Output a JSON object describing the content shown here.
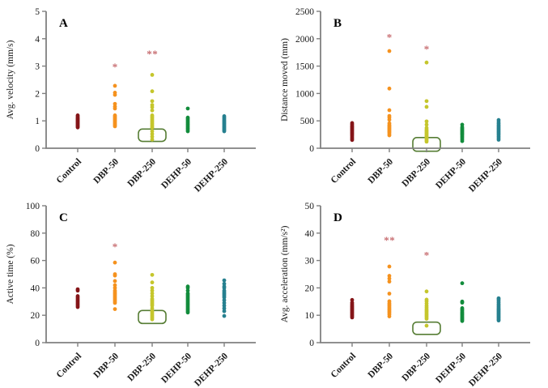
{
  "figure": {
    "background": "#ffffff",
    "axis_color": "#808080",
    "text_color": "#1a1a1a",
    "outlier_marker": "*",
    "outlier_color": "#c86e72",
    "highlight_box_color": "#567d34",
    "group_colors": {
      "Control": "#851518",
      "DBP-50": "#f5921e",
      "DBP-250": "#c5c62c",
      "DEHP-50": "#128c3c",
      "DEHP-250": "#26808f"
    }
  },
  "chart_data": [
    {
      "type": "scatter",
      "panel_label": "A",
      "title": "",
      "xlabel": "",
      "ylabel": "Avg. velocity (mm/s)",
      "ylim": [
        0,
        5
      ],
      "yticks": [
        0,
        1,
        2,
        3,
        4,
        5
      ],
      "categories": [
        "Control",
        "DBP-50",
        "DBP-250",
        "DEHP-50",
        "DEHP-250"
      ],
      "series": [
        {
          "name": "Control",
          "values": [
            0.76,
            0.79,
            0.82,
            0.85,
            0.88,
            0.91,
            0.94,
            0.97,
            1.0,
            1.03,
            1.06,
            1.09,
            1.12,
            1.16,
            1.2
          ],
          "outliers": []
        },
        {
          "name": "DBP-50",
          "values": [
            0.8,
            0.84,
            0.88,
            0.92,
            0.96,
            1.0,
            1.04,
            1.08,
            1.12,
            1.16,
            1.2,
            1.45,
            1.52,
            1.62,
            1.95,
            2.03,
            2.28
          ],
          "outliers": [
            2.97
          ]
        },
        {
          "name": "DBP-250",
          "values": [
            0.32,
            0.42,
            0.52,
            0.62,
            0.75,
            0.8,
            0.85,
            0.9,
            0.95,
            1.0,
            1.05,
            1.1,
            1.15,
            1.2,
            1.38,
            1.5,
            1.58,
            1.72,
            2.08,
            2.68
          ],
          "outliers": [
            3.45,
            3.45
          ]
        },
        {
          "name": "DEHP-50",
          "values": [
            0.62,
            0.67,
            0.72,
            0.77,
            0.82,
            0.87,
            0.92,
            0.97,
            1.02,
            1.07,
            1.12,
            1.45
          ],
          "outliers": []
        },
        {
          "name": "DEHP-250",
          "values": [
            0.62,
            0.66,
            0.7,
            0.74,
            0.78,
            0.82,
            0.86,
            0.9,
            0.94,
            0.98,
            1.02,
            1.07,
            1.12,
            1.17
          ],
          "outliers": []
        }
      ],
      "highlight_box": {
        "category": "DBP-250",
        "y_from": 0.25,
        "y_to": 0.7
      }
    },
    {
      "type": "scatter",
      "panel_label": "B",
      "title": "",
      "xlabel": "",
      "ylabel": "Distance moved (mm)",
      "ylim": [
        0,
        2500
      ],
      "yticks": [
        0,
        500,
        1000,
        1500,
        2000,
        2500
      ],
      "categories": [
        "Control",
        "DBP-50",
        "DBP-250",
        "DEHP-50",
        "DEHP-250"
      ],
      "series": [
        {
          "name": "Control",
          "values": [
            150,
            175,
            200,
            225,
            250,
            270,
            290,
            310,
            330,
            350,
            370,
            390,
            410,
            435,
            460
          ],
          "outliers": []
        },
        {
          "name": "DBP-50",
          "values": [
            235,
            260,
            285,
            305,
            325,
            345,
            365,
            385,
            405,
            425,
            455,
            520,
            560,
            590,
            695,
            1090,
            1775
          ],
          "outliers": [
            2030
          ]
        },
        {
          "name": "DBP-250",
          "values": [
            120,
            140,
            160,
            180,
            200,
            220,
            240,
            260,
            280,
            300,
            320,
            340,
            370,
            430,
            490,
            755,
            860,
            1565
          ],
          "outliers": [
            1810
          ]
        },
        {
          "name": "DEHP-50",
          "values": [
            130,
            160,
            190,
            215,
            240,
            260,
            280,
            300,
            320,
            340,
            360,
            385,
            430
          ],
          "outliers": []
        },
        {
          "name": "DEHP-250",
          "values": [
            155,
            185,
            215,
            245,
            270,
            295,
            320,
            345,
            370,
            395,
            420,
            450,
            480,
            515
          ],
          "outliers": []
        }
      ],
      "highlight_box": {
        "category": "DBP-250",
        "y_from": -55,
        "y_to": 195
      }
    },
    {
      "type": "scatter",
      "panel_label": "C",
      "title": "",
      "xlabel": "",
      "ylabel": "Active time (%)",
      "ylim": [
        0,
        100
      ],
      "yticks": [
        0,
        20,
        40,
        60,
        80,
        100
      ],
      "categories": [
        "Control",
        "DBP-50",
        "DBP-250",
        "DEHP-50",
        "DEHP-250"
      ],
      "series": [
        {
          "name": "Control",
          "values": [
            26,
            27,
            28,
            29,
            30,
            31,
            32,
            33,
            34,
            38,
            39
          ],
          "outliers": []
        },
        {
          "name": "DBP-50",
          "values": [
            24.5,
            29,
            30,
            31,
            32,
            33,
            34,
            35,
            36,
            37,
            38,
            40,
            42,
            45,
            49,
            50,
            58.5
          ],
          "outliers": [
            70
          ]
        },
        {
          "name": "DBP-250",
          "values": [
            17,
            18,
            19,
            20,
            21,
            22,
            23,
            25,
            27,
            28,
            29,
            30,
            31,
            32,
            34,
            36,
            38,
            40,
            44,
            49.5
          ],
          "outliers": []
        },
        {
          "name": "DEHP-50",
          "values": [
            22,
            23,
            24,
            25,
            26,
            27,
            28,
            29,
            30,
            31,
            32,
            33,
            34,
            35,
            36,
            38,
            40,
            41
          ],
          "outliers": []
        },
        {
          "name": "DEHP-250",
          "values": [
            19.5,
            23,
            25,
            27,
            29,
            31,
            33,
            34,
            35,
            36,
            37,
            38,
            40,
            41,
            43,
            45.5
          ],
          "outliers": []
        }
      ],
      "highlight_box": {
        "category": "DBP-250",
        "y_from": 14,
        "y_to": 23.5
      }
    },
    {
      "type": "scatter",
      "panel_label": "D",
      "title": "",
      "xlabel": "",
      "ylabel": "Avg. acceleration (mm/s²)",
      "ylim": [
        0,
        50
      ],
      "yticks": [
        0,
        10,
        20,
        30,
        40,
        50
      ],
      "categories": [
        "Control",
        "DBP-50",
        "DBP-250",
        "DEHP-50",
        "DEHP-250"
      ],
      "series": [
        {
          "name": "Control",
          "values": [
            9.2,
            9.6,
            10.0,
            10.4,
            10.8,
            11.2,
            11.6,
            12.0,
            12.4,
            12.8,
            13.2,
            13.6,
            14.1,
            14.6,
            15.6
          ],
          "outliers": []
        },
        {
          "name": "DBP-50",
          "values": [
            9.6,
            10.3,
            10.9,
            11.4,
            11.9,
            12.4,
            12.9,
            13.4,
            13.9,
            14.4,
            15.1,
            17.9,
            22.3,
            23.4,
            24.4,
            27.8
          ],
          "outliers": [
            37.5,
            37.5
          ]
        },
        {
          "name": "DBP-250",
          "values": [
            6.2,
            8.7,
            9.3,
            9.8,
            10.3,
            10.8,
            11.3,
            11.8,
            12.3,
            12.9,
            13.5,
            14.3,
            15.1,
            15.7,
            18.7
          ],
          "outliers": [
            32
          ]
        },
        {
          "name": "DEHP-50",
          "values": [
            7.9,
            8.3,
            8.7,
            9.1,
            9.5,
            9.9,
            10.3,
            10.7,
            11.1,
            11.6,
            12.1,
            12.6,
            14.6,
            15.0,
            21.7
          ],
          "outliers": []
        },
        {
          "name": "DEHP-250",
          "values": [
            8.1,
            8.5,
            8.9,
            9.3,
            9.7,
            10.1,
            10.5,
            10.9,
            11.3,
            11.7,
            12.1,
            12.5,
            13.0,
            13.5,
            14.0,
            14.6,
            15.2,
            15.8,
            16.2
          ],
          "outliers": []
        }
      ],
      "highlight_box": {
        "category": "DBP-250",
        "y_from": 3,
        "y_to": 7.5
      }
    }
  ]
}
